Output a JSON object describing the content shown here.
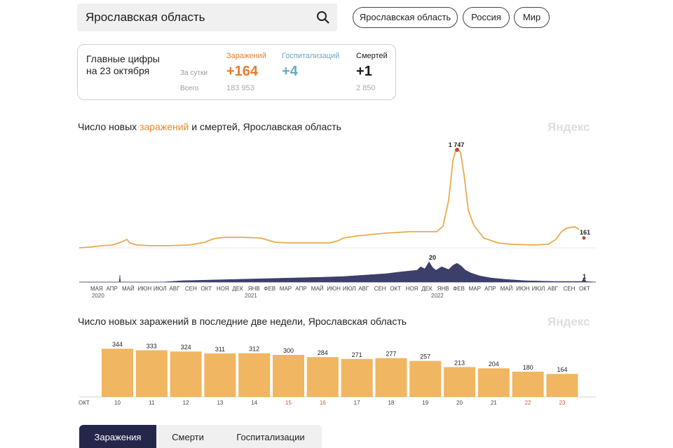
{
  "search": {
    "value": "Ярославская область"
  },
  "regions": [
    {
      "label": "Ярославская область",
      "active": true
    },
    {
      "label": "Россия",
      "active": false
    },
    {
      "label": "Мир",
      "active": false
    }
  ],
  "summary": {
    "title_line1": "Главные цифры",
    "title_line2": "на 23 октября",
    "daily_label": "За сутки",
    "total_label": "Всего",
    "columns": [
      {
        "label": "Заражений",
        "daily": "+164",
        "total": "183 953",
        "color": "#e47d2e"
      },
      {
        "label": "Госпитализаций",
        "daily": "+4",
        "total": "",
        "color": "#6aa9c2"
      },
      {
        "label": "Смертей",
        "daily": "+1",
        "total": "2 850",
        "color": "#1a1a1a"
      }
    ]
  },
  "watermark": "Яндекс",
  "chart1": {
    "title_prefix": "Число новых",
    "title_accent": "заражений",
    "title_suffix": "и смертей, Ярославская область",
    "peak_label": "1 747",
    "last_label": "161",
    "deaths_peak_label": "20",
    "deaths_last_label": "1",
    "months": [
      "МАЯ",
      "АПР",
      "МАЙ",
      "ИЮН",
      "ИЮЛ",
      "АВГ",
      "СЕН",
      "ОКТ",
      "НОЯ",
      "ДЕК",
      "ЯНВ",
      "ФЕВ",
      "МАР",
      "АПР",
      "МАЙ",
      "ИЮН",
      "ИЮЛ",
      "АВГ",
      "СЕН",
      "ОКТ",
      "НОЯ",
      "ДЕК",
      "ЯНВ",
      "ФЕВ",
      "МАР",
      "АПР",
      "МАЙ",
      "ИЮН",
      "ИЮЛ",
      "АВГ",
      "СЕН",
      "ОКТ"
    ],
    "years": [
      "2020",
      "2021",
      "2022"
    ]
  },
  "chart_data": {
    "type": "bar",
    "title": "Число новых заражений в последние две недели, Ярославская область",
    "xlabel": "ОКТ",
    "ylabel": "",
    "categories": [
      "10",
      "11",
      "12",
      "13",
      "14",
      "15",
      "16",
      "17",
      "18",
      "19",
      "20",
      "21",
      "22",
      "23"
    ],
    "values": [
      344,
      333,
      324,
      311,
      312,
      300,
      284,
      271,
      277,
      257,
      213,
      204,
      180,
      164
    ],
    "weekend": [
      "15",
      "16",
      "22",
      "23"
    ],
    "ylim": [
      0,
      360
    ],
    "bar_color": "#f0b661",
    "weekend_color": "#d8543a"
  },
  "tabs": [
    {
      "label": "Заражения",
      "active": true
    },
    {
      "label": "Смерти",
      "active": false
    },
    {
      "label": "Госпитализации",
      "active": false
    }
  ]
}
